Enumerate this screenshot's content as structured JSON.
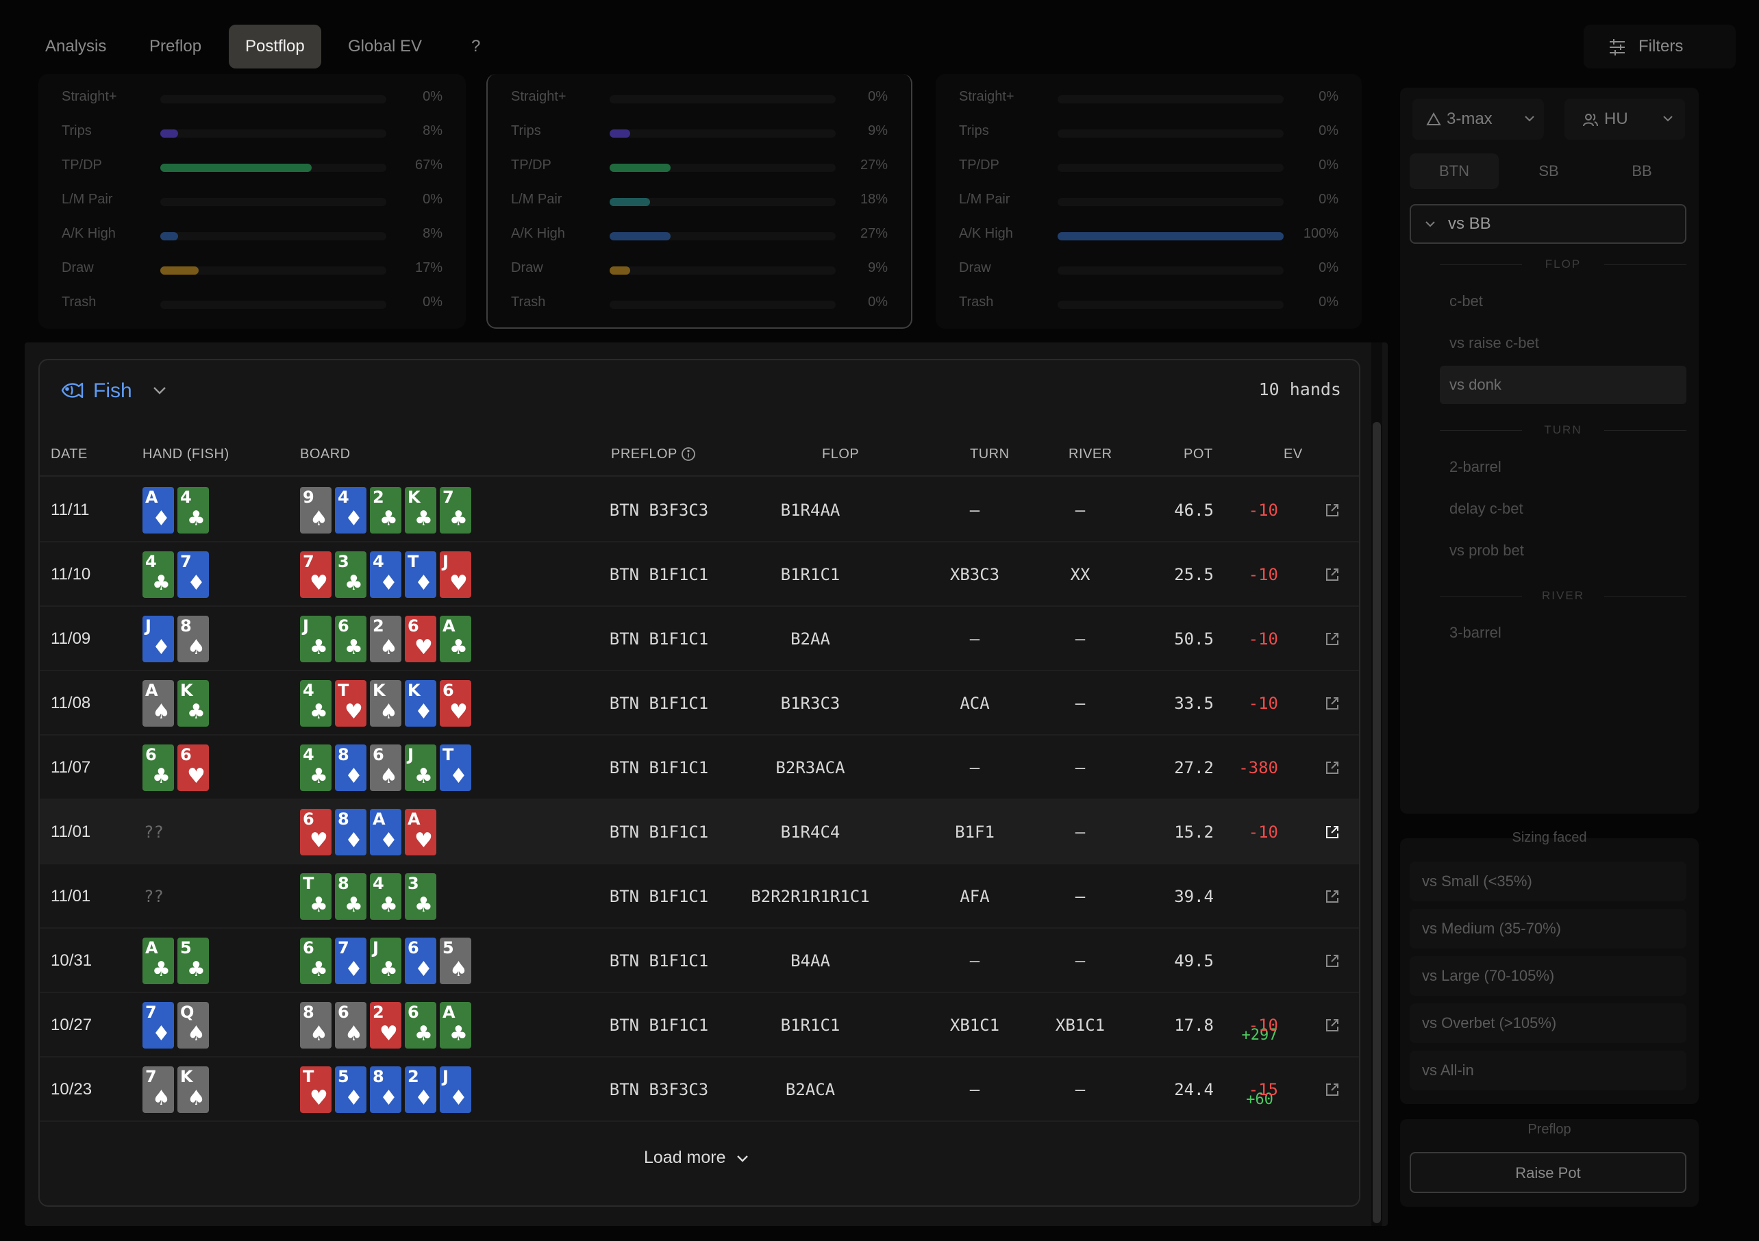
{
  "nav": {
    "tabs": [
      {
        "label": "Analysis"
      },
      {
        "label": "Preflop"
      },
      {
        "label": "Postflop"
      },
      {
        "label": "Global EV"
      },
      {
        "label": "?"
      }
    ],
    "active_tab": "Postflop",
    "filters_label": "Filters"
  },
  "stat_panels": [
    {
      "rows": [
        {
          "label": "Straight+",
          "value": 0,
          "text": "0%",
          "color": "#4a2f8a"
        },
        {
          "label": "Trips",
          "value": 8,
          "text": "8%",
          "color": "#3b2c86"
        },
        {
          "label": "TP/DP",
          "value": 67,
          "text": "67%",
          "color": "#1f6b3e"
        },
        {
          "label": "L/M Pair",
          "value": 0,
          "text": "0%",
          "color": "#1e5a5a"
        },
        {
          "label": "A/K High",
          "value": 8,
          "text": "8%",
          "color": "#22406e"
        },
        {
          "label": "Draw",
          "value": 17,
          "text": "17%",
          "color": "#7a5a18"
        },
        {
          "label": "Trash",
          "value": 0,
          "text": "0%",
          "color": "#333333"
        }
      ]
    },
    {
      "rows": [
        {
          "label": "Straight+",
          "value": 0,
          "text": "0%",
          "color": "#4a2f8a"
        },
        {
          "label": "Trips",
          "value": 9,
          "text": "9%",
          "color": "#3b2c86"
        },
        {
          "label": "TP/DP",
          "value": 27,
          "text": "27%",
          "color": "#1f6b3e"
        },
        {
          "label": "L/M Pair",
          "value": 18,
          "text": "18%",
          "color": "#1e5a5a"
        },
        {
          "label": "A/K High",
          "value": 27,
          "text": "27%",
          "color": "#22406e"
        },
        {
          "label": "Draw",
          "value": 9,
          "text": "9%",
          "color": "#7a5a18"
        },
        {
          "label": "Trash",
          "value": 0,
          "text": "0%",
          "color": "#333333"
        }
      ]
    },
    {
      "rows": [
        {
          "label": "Straight+",
          "value": 0,
          "text": "0%",
          "color": "#4a2f8a"
        },
        {
          "label": "Trips",
          "value": 0,
          "text": "0%",
          "color": "#3b2c86"
        },
        {
          "label": "TP/DP",
          "value": 0,
          "text": "0%",
          "color": "#1f6b3e"
        },
        {
          "label": "L/M Pair",
          "value": 0,
          "text": "0%",
          "color": "#1e5a5a"
        },
        {
          "label": "A/K High",
          "value": 100,
          "text": "100%",
          "color": "#22406e"
        },
        {
          "label": "Draw",
          "value": 0,
          "text": "0%",
          "color": "#7a5a18"
        },
        {
          "label": "Trash",
          "value": 0,
          "text": "0%",
          "color": "#333333"
        }
      ]
    }
  ],
  "fish": {
    "label": "Fish",
    "hand_count": "10 hands"
  },
  "table": {
    "headers": {
      "date": "DATE",
      "hand": "HAND (FISH)",
      "board": "BOARD",
      "preflop": "PREFLOP",
      "flop": "FLOP",
      "turn": "TURN",
      "river": "RIVER",
      "pot": "POT",
      "ev": "EV"
    },
    "rows": [
      {
        "date": "11/11",
        "hand": [
          [
            "A",
            "d"
          ],
          [
            "4",
            "c"
          ]
        ],
        "board": [
          [
            "9",
            "s"
          ],
          [
            "4",
            "d"
          ],
          [
            "2",
            "c"
          ],
          [
            "K",
            "c"
          ],
          [
            "7",
            "c"
          ]
        ],
        "preflop": "BTN B3F3C3",
        "flop": "B1R4AA",
        "turn": "–",
        "river": "–",
        "pot": "46.5",
        "ev": "-10"
      },
      {
        "date": "11/10",
        "hand": [
          [
            "4",
            "c"
          ],
          [
            "7",
            "d"
          ]
        ],
        "board": [
          [
            "7",
            "h"
          ],
          [
            "3",
            "c"
          ],
          [
            "4",
            "d"
          ],
          [
            "T",
            "d"
          ],
          [
            "J",
            "h"
          ]
        ],
        "preflop": "BTN B1F1C1",
        "flop": "B1R1C1",
        "turn": "XB3C3",
        "river": "XX",
        "pot": "25.5",
        "ev": "-10"
      },
      {
        "date": "11/09",
        "hand": [
          [
            "J",
            "d"
          ],
          [
            "8",
            "s"
          ]
        ],
        "board": [
          [
            "J",
            "c"
          ],
          [
            "6",
            "c"
          ],
          [
            "2",
            "s"
          ],
          [
            "6",
            "h"
          ],
          [
            "A",
            "c"
          ]
        ],
        "preflop": "BTN B1F1C1",
        "flop": "B2AA",
        "turn": "–",
        "river": "–",
        "pot": "50.5",
        "ev": "-10"
      },
      {
        "date": "11/08",
        "hand": [
          [
            "A",
            "s"
          ],
          [
            "K",
            "c"
          ]
        ],
        "board": [
          [
            "4",
            "c"
          ],
          [
            "T",
            "h"
          ],
          [
            "K",
            "s"
          ],
          [
            "K",
            "d"
          ],
          [
            "6",
            "h"
          ]
        ],
        "preflop": "BTN B1F1C1",
        "flop": "B1R3C3",
        "turn": "ACA",
        "river": "–",
        "pot": "33.5",
        "ev": "-10"
      },
      {
        "date": "11/07",
        "hand": [
          [
            "6",
            "c"
          ],
          [
            "6",
            "h"
          ]
        ],
        "board": [
          [
            "4",
            "c"
          ],
          [
            "8",
            "d"
          ],
          [
            "6",
            "s"
          ],
          [
            "J",
            "c"
          ],
          [
            "T",
            "d"
          ]
        ],
        "preflop": "BTN B1F1C1",
        "flop": "B2R3ACA",
        "turn": "–",
        "river": "–",
        "pot": "27.2",
        "ev": "-380"
      },
      {
        "date": "11/01",
        "hand": "??",
        "board": [
          [
            "6",
            "h"
          ],
          [
            "8",
            "d"
          ],
          [
            "A",
            "d"
          ],
          [
            "A",
            "h"
          ]
        ],
        "preflop": "BTN B1F1C1",
        "flop": "B1R4C4",
        "turn": "B1F1",
        "river": "–",
        "pot": "15.2",
        "ev": "-10",
        "highlight": true
      },
      {
        "date": "11/01",
        "hand": "??",
        "board": [
          [
            "T",
            "c"
          ],
          [
            "8",
            "c"
          ],
          [
            "4",
            "c"
          ],
          [
            "3",
            "c"
          ]
        ],
        "preflop": "BTN B1F1C1",
        "flop": "B2R2R1R1R1C1",
        "turn": "AFA",
        "river": "–",
        "pot": "39.4",
        "ev": "+297"
      },
      {
        "date": "10/31",
        "hand": [
          [
            "A",
            "c"
          ],
          [
            "5",
            "c"
          ]
        ],
        "board": [
          [
            "6",
            "c"
          ],
          [
            "7",
            "d"
          ],
          [
            "J",
            "c"
          ],
          [
            "6",
            "d"
          ],
          [
            "5",
            "s"
          ]
        ],
        "preflop": "BTN B1F1C1",
        "flop": "B4AA",
        "turn": "–",
        "river": "–",
        "pot": "49.5",
        "ev": "+60"
      },
      {
        "date": "10/27",
        "hand": [
          [
            "7",
            "d"
          ],
          [
            "Q",
            "s"
          ]
        ],
        "board": [
          [
            "8",
            "s"
          ],
          [
            "6",
            "s"
          ],
          [
            "2",
            "h"
          ],
          [
            "6",
            "c"
          ],
          [
            "A",
            "c"
          ]
        ],
        "preflop": "BTN B1F1C1",
        "flop": "B1R1C1",
        "turn": "XB1C1",
        "river": "XB1C1",
        "pot": "17.8",
        "ev": "-10"
      },
      {
        "date": "10/23",
        "hand": [
          [
            "7",
            "s"
          ],
          [
            "K",
            "s"
          ]
        ],
        "board": [
          [
            "T",
            "h"
          ],
          [
            "5",
            "d"
          ],
          [
            "8",
            "d"
          ],
          [
            "2",
            "d"
          ],
          [
            "J",
            "d"
          ]
        ],
        "preflop": "BTN B3F3C3",
        "flop": "B2ACA",
        "turn": "–",
        "river": "–",
        "pot": "24.4",
        "ev": "-15"
      }
    ],
    "load_more": "Load more"
  },
  "sidebar": {
    "format": "3-max",
    "players": "HU",
    "positions": [
      "BTN",
      "SB",
      "BB"
    ],
    "active_position": "BTN",
    "vs_selector": "vs BB",
    "sections": [
      {
        "title": "FLOP",
        "items": [
          "c-bet",
          "vs raise c-bet",
          "vs donk"
        ]
      },
      {
        "title": "TURN",
        "items": [
          "2-barrel",
          "delay c-bet",
          "vs prob bet"
        ]
      },
      {
        "title": "RIVER",
        "items": [
          "3-barrel"
        ]
      }
    ],
    "active_item": "vs donk",
    "sizing_title": "Sizing faced",
    "sizing_items": [
      "vs Small (<35%)",
      "vs Medium (35-70%)",
      "vs Large (70-105%)",
      "vs Overbet (>105%)",
      "vs All-in"
    ],
    "preflop_title": "Preflop",
    "preflop_button": "Raise Pot"
  },
  "colors": {
    "spade": "#6b6b6b",
    "heart": "#c43838",
    "diamond": "#2f5fc4",
    "club": "#3a7d3a",
    "accent": "#5f9cf5",
    "negative": "#ef4b4b",
    "positive": "#4cc960"
  }
}
